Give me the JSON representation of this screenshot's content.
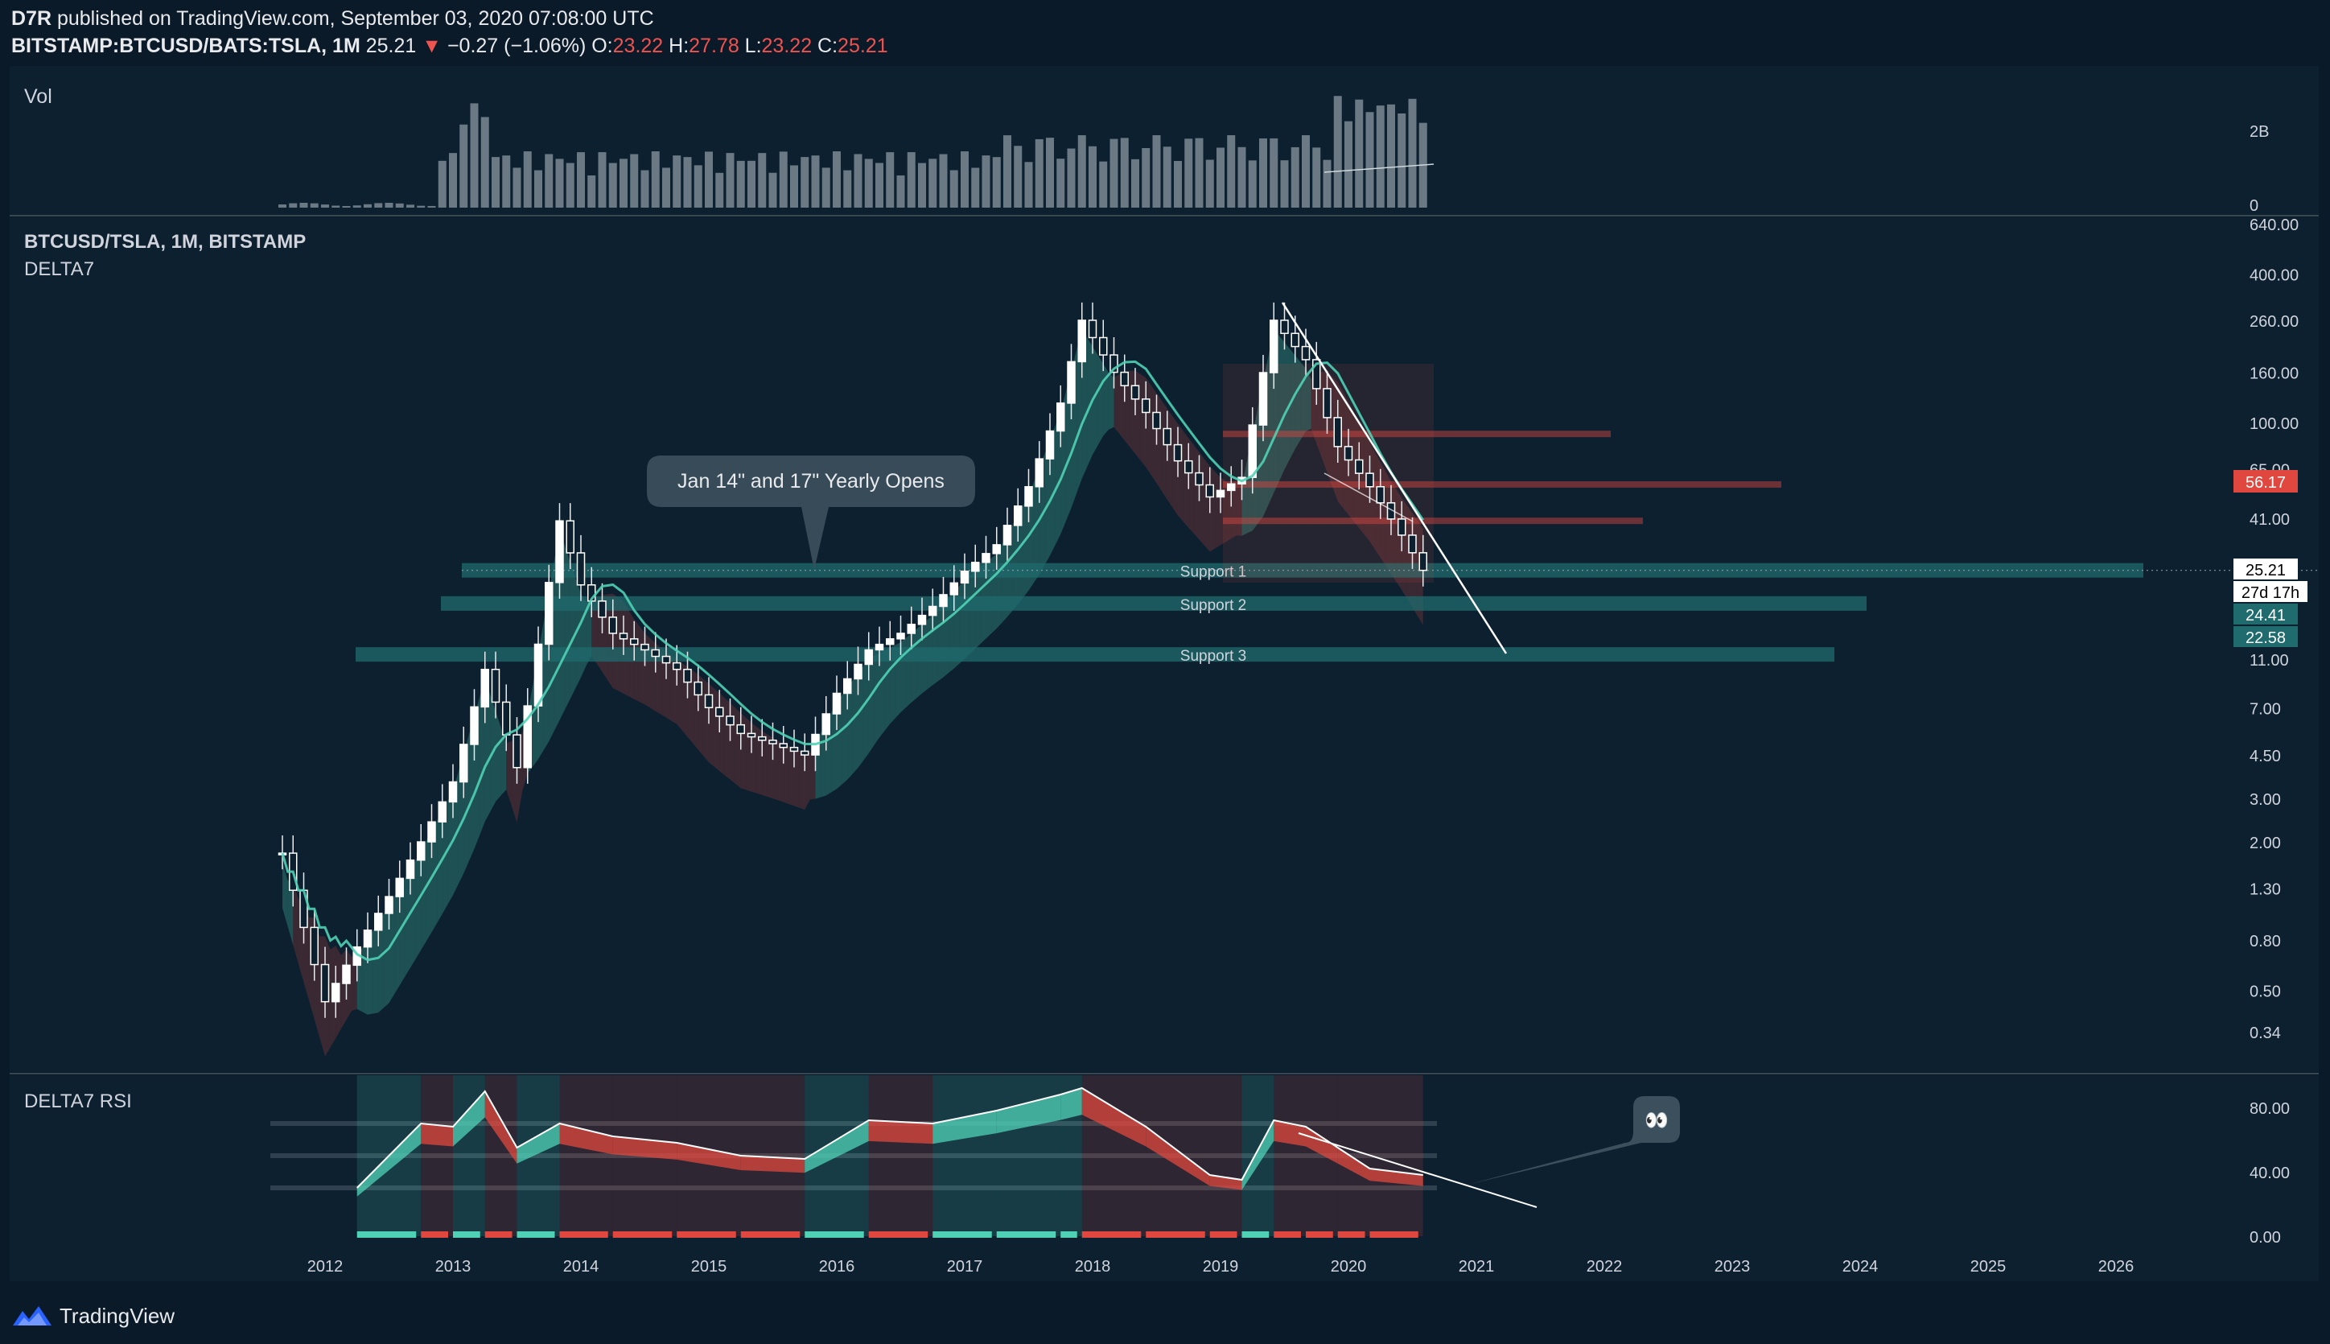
{
  "header": {
    "publisher": "D7R",
    "published_line": "published on TradingView.com, September 03, 2020 07:08:00 UTC",
    "symbol": "BITSTAMP:BTCUSD/BATS:TSLA, 1M",
    "last": "25.21",
    "change": "−0.27 (−1.06%)",
    "open_label": "O:",
    "open": "23.22",
    "high_label": "H:",
    "high": "27.78",
    "low_label": "L:",
    "low": "23.22",
    "close_label": "C:",
    "close": "25.21"
  },
  "panes": {
    "volume_title": "Vol",
    "main_title": "BTCUSD/TSLA, 1M, BITSTAMP",
    "main_indicator": "DELTA7",
    "rsi_title": "DELTA7 RSI"
  },
  "annotations": {
    "callout": "Jan 14\" and 17\" Yearly Opens",
    "support1": "Support 1",
    "support2": "Support 2",
    "support3": "Support 3",
    "eyes": "👀"
  },
  "price_badges": {
    "red": "56.17",
    "last": "25.21",
    "countdown": "27d 17h",
    "green1": "24.41",
    "green2": "22.58"
  },
  "footer": {
    "brand": "TradingView"
  },
  "colors": {
    "background": "#0b1a28",
    "bull": "#4fd1b5",
    "bear": "#e0483f",
    "support": "#1f6b6e",
    "axis_text": "#d1d4dc"
  },
  "chart_data": [
    {
      "type": "bar",
      "title": "Vol",
      "y_ticks": [
        "0",
        "2B"
      ],
      "x_range": [
        "2011-09",
        "2020-09"
      ]
    },
    {
      "type": "line",
      "title": "BTCUSD/TSLA, 1M, BITSTAMP",
      "indicator": "DELTA7",
      "y_scale": "log",
      "y_ticks": [
        "640.00",
        "400.00",
        "260.00",
        "160.00",
        "100.00",
        "65.00",
        "41.00",
        "25.21",
        "11.00",
        "7.00",
        "4.50",
        "3.00",
        "2.00",
        "1.30",
        "0.80",
        "0.50",
        "0.34"
      ],
      "x_ticks": [
        "2012",
        "2013",
        "2014",
        "2015",
        "2016",
        "2017",
        "2018",
        "2019",
        "2020",
        "2021",
        "2022",
        "2023",
        "2024",
        "2025",
        "2026"
      ],
      "series": [
        {
          "x": [
            "2011-09",
            "2012-01",
            "2012-04",
            "2012-07",
            "2012-10",
            "2013-01",
            "2013-04",
            "2013-07",
            "2013-11",
            "2014-01",
            "2014-04",
            "2014-07",
            "2014-10",
            "2015-01",
            "2015-04",
            "2015-07",
            "2015-10",
            "2016-01",
            "2016-04",
            "2016-07",
            "2016-10",
            "2017-01",
            "2017-04",
            "2017-07",
            "2017-10",
            "2017-12",
            "2018-03",
            "2018-06",
            "2018-09",
            "2018-12",
            "2019-03",
            "2019-06",
            "2019-09",
            "2019-12",
            "2020-03",
            "2020-06",
            "2020-08"
          ],
          "values": [
            1.8,
            0.45,
            0.75,
            1.2,
            2.0,
            3.5,
            10,
            4,
            40,
            22,
            14,
            12,
            10,
            7,
            5.5,
            5,
            4.5,
            8,
            12,
            14,
            18,
            25,
            32,
            55,
            120,
            260,
            160,
            110,
            70,
            50,
            60,
            260,
            180,
            80,
            55,
            35,
            25.2
          ]
        }
      ],
      "support_levels": [
        {
          "label": "Support 1",
          "value": 25.2
        },
        {
          "label": "Support 2",
          "value": 18.5
        },
        {
          "label": "Support 3",
          "value": 11.5
        }
      ],
      "resistance_levels": [
        90,
        56.17,
        40
      ]
    },
    {
      "type": "line",
      "title": "DELTA7 RSI",
      "y_ticks": [
        "80.00",
        "40.00",
        "0.00"
      ],
      "ylim": [
        0,
        100
      ],
      "series": [
        {
          "x": [
            "2012-04",
            "2012-10",
            "2013-01",
            "2013-04",
            "2013-07",
            "2013-11",
            "2014-04",
            "2014-10",
            "2015-04",
            "2015-10",
            "2016-04",
            "2016-10",
            "2017-04",
            "2017-10",
            "2017-12",
            "2018-06",
            "2018-12",
            "2019-03",
            "2019-06",
            "2019-09",
            "2019-12",
            "2020-03",
            "2020-08"
          ],
          "values": [
            30,
            70,
            68,
            90,
            55,
            70,
            62,
            58,
            50,
            48,
            72,
            70,
            78,
            88,
            92,
            68,
            38,
            35,
            72,
            68,
            55,
            42,
            38
          ]
        }
      ]
    }
  ]
}
